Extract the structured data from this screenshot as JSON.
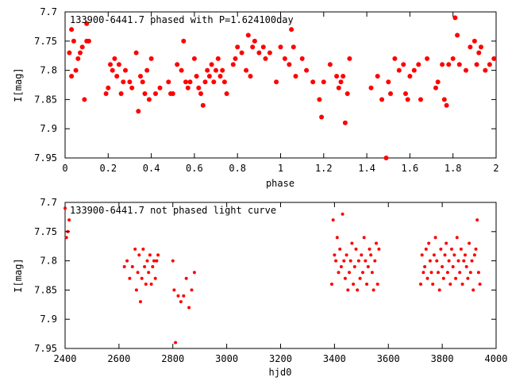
{
  "chart_data": [
    {
      "type": "scatter",
      "title": "133900-6441.7 phased with P=1.624100day",
      "xlabel": "phase",
      "ylabel": "I[mag]",
      "xlim": [
        0,
        2
      ],
      "ylim": [
        7.95,
        7.7
      ],
      "y_inverted": true,
      "grid": false,
      "marker_color": "#ff0000",
      "xticks": [
        "0",
        "0.2",
        "0.4",
        "0.6",
        "0.8",
        "1",
        "1.2",
        "1.4",
        "1.6",
        "1.8",
        "2"
      ],
      "yticks": [
        "7.7",
        "7.75",
        "7.8",
        "7.85",
        "7.9",
        "7.95"
      ],
      "x": [
        0.02,
        0.03,
        0.04,
        0.03,
        0.05,
        0.06,
        0.07,
        0.08,
        0.09,
        0.1,
        0.1,
        0.11,
        0.19,
        0.2,
        0.21,
        0.22,
        0.23,
        0.24,
        0.25,
        0.26,
        0.27,
        0.28,
        0.3,
        0.31,
        0.33,
        0.34,
        0.35,
        0.36,
        0.37,
        0.38,
        0.39,
        0.4,
        0.42,
        0.44,
        0.48,
        0.49,
        0.5,
        0.52,
        0.54,
        0.55,
        0.56,
        0.57,
        0.58,
        0.6,
        0.61,
        0.62,
        0.63,
        0.64,
        0.65,
        0.66,
        0.67,
        0.68,
        0.69,
        0.7,
        0.71,
        0.72,
        0.73,
        0.74,
        0.75,
        0.78,
        0.79,
        0.8,
        0.82,
        0.84,
        0.85,
        0.86,
        0.87,
        0.88,
        0.9,
        0.92,
        0.93,
        0.95,
        0.98,
        1.0,
        1.02,
        1.04,
        1.05,
        1.06,
        1.07,
        1.1,
        1.12,
        1.15,
        1.18,
        1.19,
        1.2,
        1.23,
        1.26,
        1.27,
        1.28,
        1.29,
        1.3,
        1.31,
        1.32,
        1.42,
        1.45,
        1.47,
        1.49,
        1.5,
        1.51,
        1.53,
        1.55,
        1.57,
        1.58,
        1.59,
        1.6,
        1.62,
        1.64,
        1.65,
        1.68,
        1.72,
        1.73,
        1.75,
        1.76,
        1.77,
        1.78,
        1.8,
        1.81,
        1.82,
        1.83,
        1.86,
        1.88,
        1.9,
        1.91,
        1.92,
        1.93,
        1.95,
        1.97,
        1.99
      ],
      "y": [
        7.77,
        7.73,
        7.75,
        7.81,
        7.8,
        7.78,
        7.77,
        7.76,
        7.85,
        7.72,
        7.75,
        7.75,
        7.84,
        7.83,
        7.79,
        7.8,
        7.78,
        7.81,
        7.79,
        7.84,
        7.82,
        7.8,
        7.82,
        7.83,
        7.77,
        7.87,
        7.81,
        7.82,
        7.84,
        7.8,
        7.85,
        7.78,
        7.84,
        7.83,
        7.82,
        7.84,
        7.84,
        7.79,
        7.8,
        7.75,
        7.82,
        7.83,
        7.82,
        7.78,
        7.81,
        7.83,
        7.84,
        7.86,
        7.82,
        7.8,
        7.81,
        7.79,
        7.82,
        7.8,
        7.78,
        7.81,
        7.8,
        7.82,
        7.84,
        7.79,
        7.78,
        7.76,
        7.77,
        7.8,
        7.74,
        7.81,
        7.76,
        7.75,
        7.77,
        7.76,
        7.78,
        7.77,
        7.82,
        7.76,
        7.78,
        7.79,
        7.73,
        7.76,
        7.81,
        7.78,
        7.8,
        7.82,
        7.85,
        7.88,
        7.82,
        7.79,
        7.81,
        7.83,
        7.82,
        7.81,
        7.89,
        7.84,
        7.78,
        7.83,
        7.81,
        7.85,
        7.95,
        7.82,
        7.84,
        7.78,
        7.8,
        7.79,
        7.84,
        7.85,
        7.81,
        7.8,
        7.79,
        7.85,
        7.78,
        7.83,
        7.82,
        7.79,
        7.85,
        7.86,
        7.79,
        7.78,
        7.71,
        7.74,
        7.79,
        7.8,
        7.76,
        7.75,
        7.79,
        7.77,
        7.76,
        7.8,
        7.79,
        7.78
      ],
      "label": {
        "title": "133900-6441.7 phased with P=1.624100day"
      }
    },
    {
      "type": "scatter",
      "title": "133900-6441.7 not phased light curve",
      "xlabel": "hjd0",
      "ylabel": "I[mag]",
      "xlim": [
        2400,
        4000
      ],
      "ylim": [
        7.95,
        7.7
      ],
      "y_inverted": true,
      "grid": false,
      "marker_color": "#ff0000",
      "xticks": [
        "2400",
        "2600",
        "2800",
        "3000",
        "3200",
        "3400",
        "3600",
        "3800",
        "4000"
      ],
      "yticks": [
        "7.7",
        "7.75",
        "7.8",
        "7.85",
        "7.9",
        "7.95"
      ],
      "x": [
        2400,
        2405,
        2410,
        2415,
        2620,
        2630,
        2640,
        2650,
        2660,
        2665,
        2670,
        2675,
        2680,
        2685,
        2690,
        2695,
        2700,
        2705,
        2710,
        2715,
        2720,
        2725,
        2730,
        2735,
        2740,
        2745,
        2800,
        2805,
        2810,
        2820,
        2830,
        2840,
        2850,
        2860,
        2870,
        2880,
        3390,
        3395,
        3400,
        3405,
        3410,
        3415,
        3420,
        3425,
        3430,
        3435,
        3440,
        3445,
        3450,
        3455,
        3460,
        3465,
        3470,
        3475,
        3480,
        3485,
        3490,
        3495,
        3500,
        3505,
        3510,
        3515,
        3520,
        3525,
        3530,
        3535,
        3540,
        3545,
        3550,
        3555,
        3560,
        3565,
        3720,
        3725,
        3730,
        3735,
        3740,
        3745,
        3750,
        3755,
        3760,
        3765,
        3770,
        3775,
        3780,
        3785,
        3790,
        3795,
        3800,
        3805,
        3810,
        3815,
        3820,
        3825,
        3830,
        3835,
        3840,
        3845,
        3850,
        3855,
        3860,
        3865,
        3870,
        3875,
        3880,
        3885,
        3890,
        3895,
        3900,
        3905,
        3910,
        3915,
        3920,
        3925,
        3930,
        3935,
        3940
      ],
      "y": [
        7.71,
        7.76,
        7.75,
        7.73,
        7.81,
        7.8,
        7.83,
        7.81,
        7.78,
        7.85,
        7.82,
        7.79,
        7.87,
        7.83,
        7.78,
        7.81,
        7.84,
        7.8,
        7.82,
        7.79,
        7.84,
        7.81,
        7.8,
        7.83,
        7.8,
        7.79,
        7.8,
        7.85,
        7.94,
        7.86,
        7.87,
        7.86,
        7.83,
        7.88,
        7.85,
        7.82,
        7.84,
        7.73,
        7.79,
        7.8,
        7.76,
        7.82,
        7.78,
        7.81,
        7.72,
        7.8,
        7.83,
        7.79,
        7.85,
        7.82,
        7.8,
        7.77,
        7.84,
        7.81,
        7.78,
        7.85,
        7.8,
        7.83,
        7.79,
        7.82,
        7.76,
        7.8,
        7.84,
        7.81,
        7.78,
        7.79,
        7.82,
        7.85,
        7.8,
        7.77,
        7.84,
        7.78,
        7.84,
        7.79,
        7.82,
        7.81,
        7.78,
        7.83,
        7.77,
        7.8,
        7.82,
        7.84,
        7.79,
        7.76,
        7.8,
        7.82,
        7.85,
        7.78,
        7.81,
        7.83,
        7.79,
        7.77,
        7.82,
        7.8,
        7.84,
        7.78,
        7.81,
        7.79,
        7.83,
        7.76,
        7.8,
        7.82,
        7.78,
        7.84,
        7.8,
        7.79,
        7.81,
        7.83,
        7.77,
        7.82,
        7.8,
        7.85,
        7.79,
        7.78,
        7.73,
        7.82,
        7.84
      ],
      "label": {
        "title": "133900-6441.7 not phased light curve"
      }
    }
  ]
}
